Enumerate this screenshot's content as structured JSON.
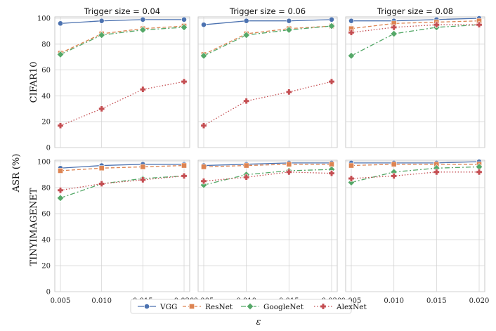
{
  "chart_data": {
    "type": "line",
    "ylabel": "ASR (%)",
    "xlabel": "ε",
    "x": [
      0.005,
      0.01,
      0.015,
      0.02
    ],
    "xticklabels": [
      "0.005",
      "0.010",
      "0.015",
      "0.020"
    ],
    "ylim": [
      0,
      100
    ],
    "yticks": [
      "0",
      "20",
      "40",
      "60",
      "80",
      "100"
    ],
    "grid": true,
    "legend_position": "bottom-center",
    "column_titles": [
      "Trigger size = 0.04",
      "Trigger size = 0.06",
      "Trigger size = 0.08"
    ],
    "row_labels": [
      "CIFAR10",
      "TINYIMAGENET"
    ],
    "series_styles": [
      {
        "name": "VGG",
        "color": "#4c72b0",
        "dash": "",
        "marker": "circle"
      },
      {
        "name": "ResNet",
        "color": "#dd8452",
        "dash": "5,3",
        "marker": "square"
      },
      {
        "name": "GoogleNet",
        "color": "#55a868",
        "dash": "7,3,2,3",
        "marker": "diamond"
      },
      {
        "name": "AlexNet",
        "color": "#c44e52",
        "dash": "1.5,2.5",
        "marker": "plus"
      }
    ],
    "panels": [
      {
        "row": 0,
        "col": 0,
        "series": [
          {
            "name": "VGG",
            "values": [
              96,
              98,
              99,
              99
            ]
          },
          {
            "name": "ResNet",
            "values": [
              73,
              88,
              92,
              94
            ]
          },
          {
            "name": "GoogleNet",
            "values": [
              72,
              87,
              91,
              93
            ]
          },
          {
            "name": "AlexNet",
            "values": [
              17,
              30,
              45,
              51
            ]
          }
        ]
      },
      {
        "row": 0,
        "col": 1,
        "series": [
          {
            "name": "VGG",
            "values": [
              95,
              98,
              98,
              99
            ]
          },
          {
            "name": "ResNet",
            "values": [
              72,
              88,
              92,
              94
            ]
          },
          {
            "name": "GoogleNet",
            "values": [
              71,
              87,
              91,
              94
            ]
          },
          {
            "name": "AlexNet",
            "values": [
              17,
              36,
              43,
              51
            ]
          }
        ]
      },
      {
        "row": 0,
        "col": 2,
        "series": [
          {
            "name": "VGG",
            "values": [
              98,
              98,
              99,
              100
            ]
          },
          {
            "name": "ResNet",
            "values": [
              92,
              96,
              97,
              98
            ]
          },
          {
            "name": "GoogleNet",
            "values": [
              71,
              88,
              93,
              95
            ]
          },
          {
            "name": "AlexNet",
            "values": [
              89,
              93,
              95,
              95
            ]
          }
        ]
      },
      {
        "row": 1,
        "col": 0,
        "series": [
          {
            "name": "VGG",
            "values": [
              95,
              97,
              98,
              98
            ]
          },
          {
            "name": "ResNet",
            "values": [
              93,
              95,
              96,
              97
            ]
          },
          {
            "name": "GoogleNet",
            "values": [
              72,
              83,
              87,
              89
            ]
          },
          {
            "name": "AlexNet",
            "values": [
              78,
              83,
              86,
              89
            ]
          }
        ]
      },
      {
        "row": 1,
        "col": 1,
        "series": [
          {
            "name": "VGG",
            "values": [
              97,
              98,
              99,
              99
            ]
          },
          {
            "name": "ResNet",
            "values": [
              96,
              97,
              98,
              98
            ]
          },
          {
            "name": "GoogleNet",
            "values": [
              82,
              90,
              93,
              94
            ]
          },
          {
            "name": "AlexNet",
            "values": [
              85,
              88,
              92,
              91
            ]
          }
        ]
      },
      {
        "row": 1,
        "col": 2,
        "series": [
          {
            "name": "VGG",
            "values": [
              99,
              99,
              99,
              100
            ]
          },
          {
            "name": "ResNet",
            "values": [
              97,
              98,
              98,
              98
            ]
          },
          {
            "name": "GoogleNet",
            "values": [
              84,
              92,
              95,
              96
            ]
          },
          {
            "name": "AlexNet",
            "values": [
              87,
              89,
              92,
              92
            ]
          }
        ]
      }
    ]
  }
}
